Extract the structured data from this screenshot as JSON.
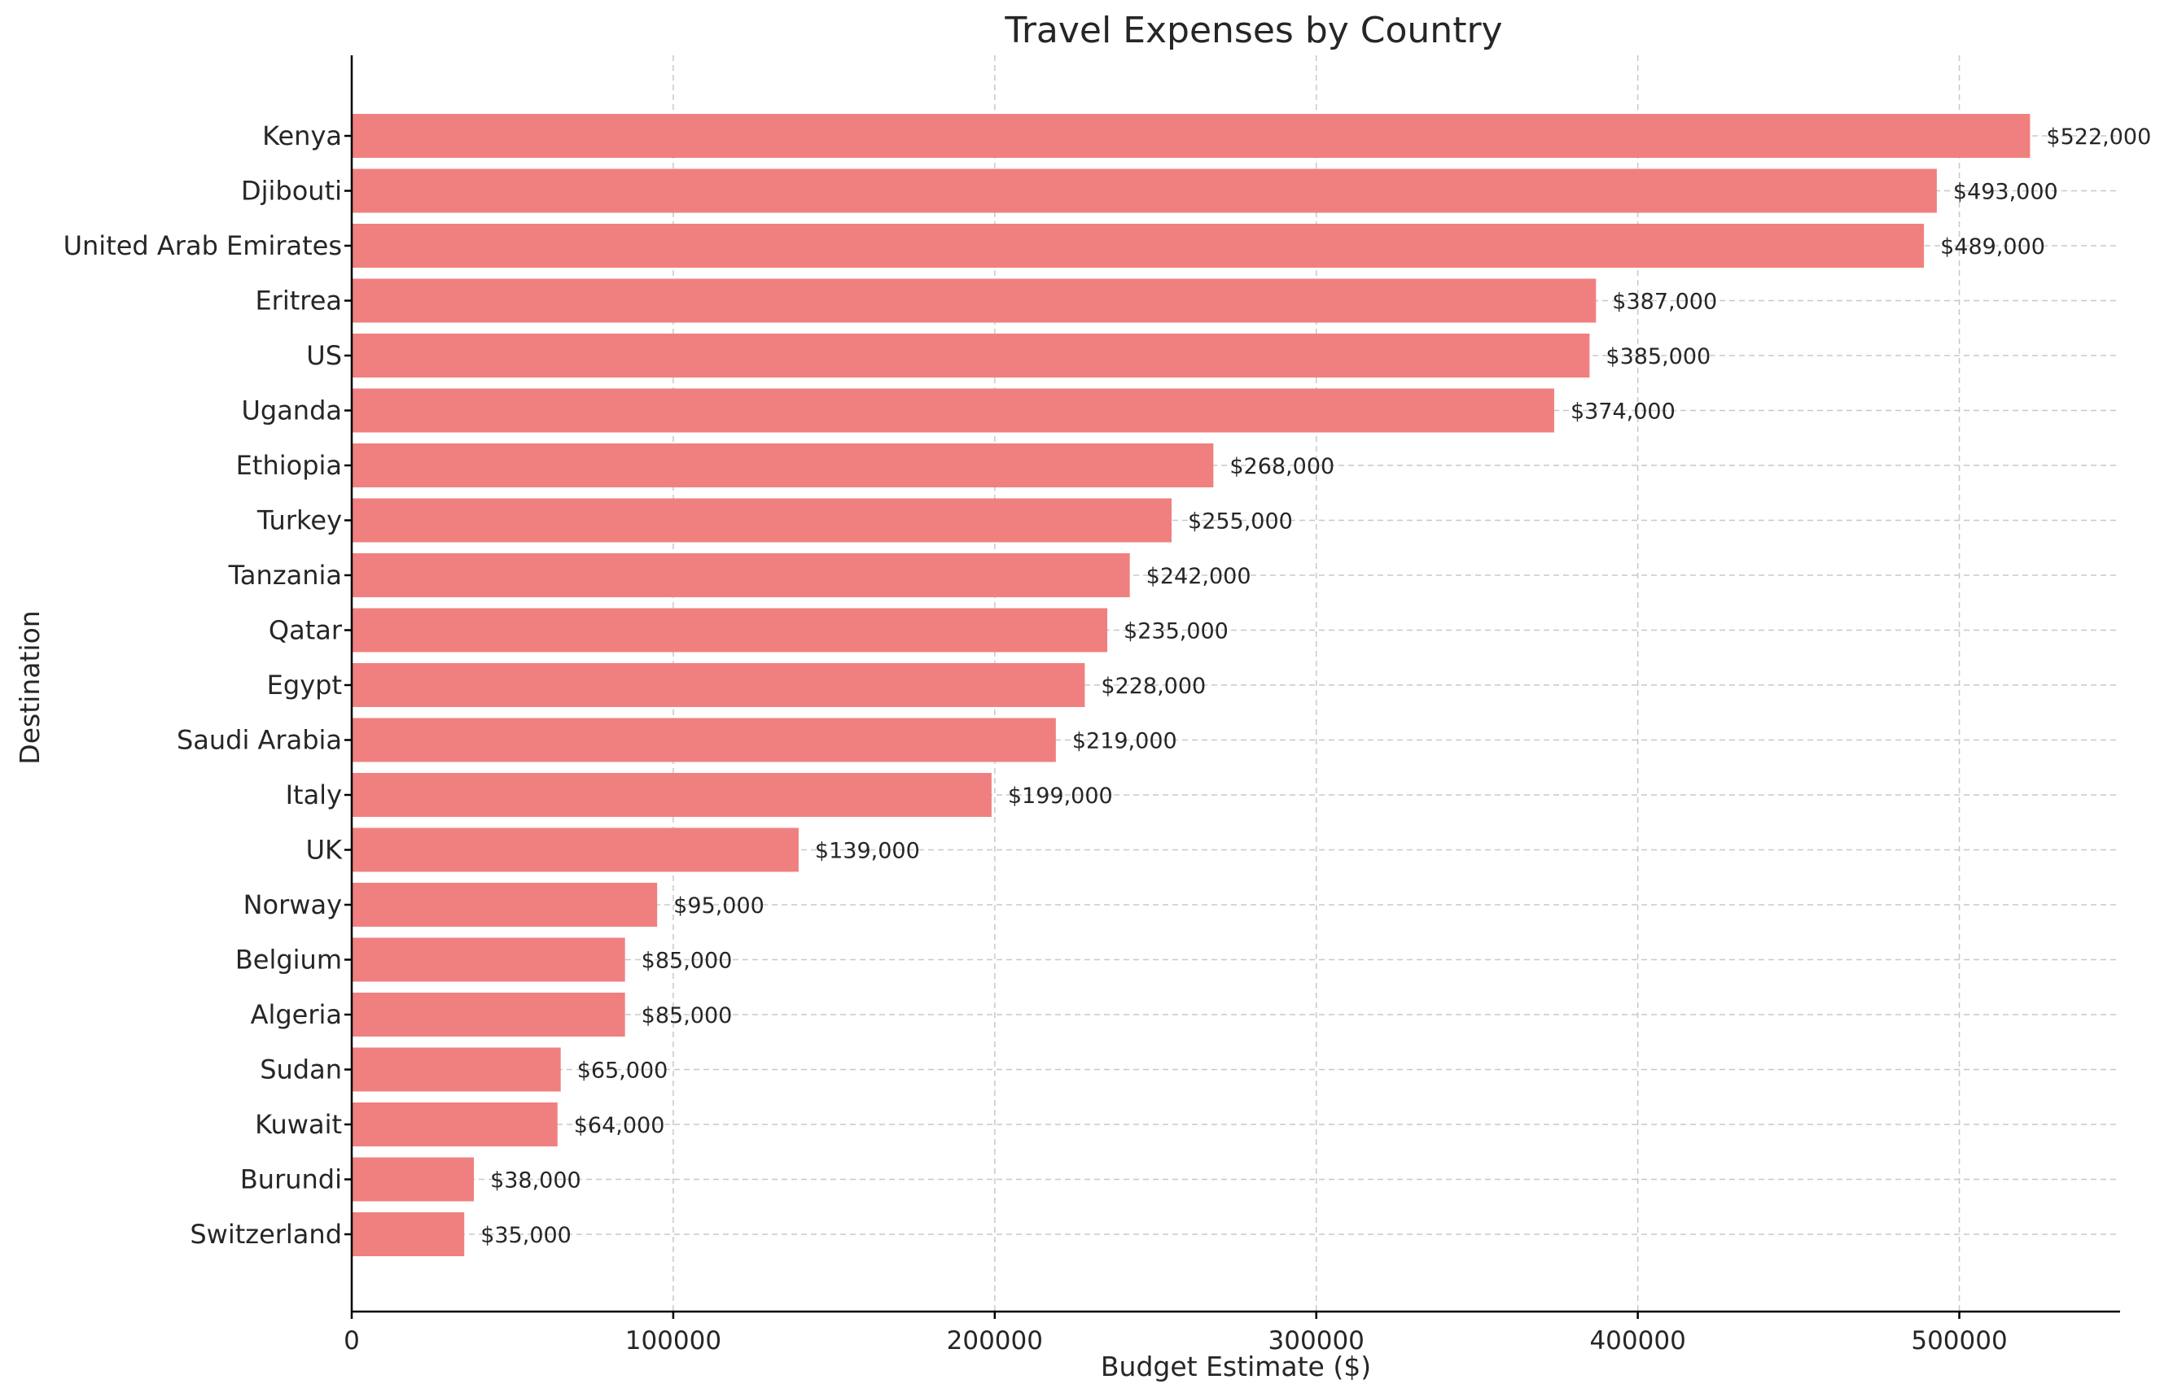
{
  "chart_data": {
    "type": "bar",
    "orientation": "horizontal",
    "title": "Travel Expenses by Country",
    "xlabel": "Budget Estimate ($)",
    "ylabel": "Destination",
    "xlim": [
      0,
      550000
    ],
    "xticks": [
      0,
      100000,
      200000,
      300000,
      400000,
      500000
    ],
    "xtick_labels": [
      "0",
      "100000",
      "200000",
      "300000",
      "400000",
      "500000"
    ],
    "grid": true,
    "bar_color": "#f08080",
    "categories": [
      "Kenya",
      "Djibouti",
      "United Arab Emirates",
      "Eritrea",
      "US",
      "Uganda",
      "Ethiopia",
      "Turkey",
      "Tanzania",
      "Qatar",
      "Egypt",
      "Saudi Arabia",
      "Italy",
      "UK",
      "Norway",
      "Belgium",
      "Algeria",
      "Sudan",
      "Kuwait",
      "Burundi",
      "Switzerland"
    ],
    "values": [
      522000,
      493000,
      489000,
      387000,
      385000,
      374000,
      268000,
      255000,
      242000,
      235000,
      228000,
      219000,
      199000,
      139000,
      95000,
      85000,
      85000,
      65000,
      64000,
      38000,
      35000
    ],
    "value_labels": [
      "$522,000",
      "$493,000",
      "$489,000",
      "$387,000",
      "$385,000",
      "$374,000",
      "$268,000",
      "$255,000",
      "$242,000",
      "$235,000",
      "$228,000",
      "$219,000",
      "$199,000",
      "$139,000",
      "$95,000",
      "$85,000",
      "$85,000",
      "$65,000",
      "$64,000",
      "$38,000",
      "$35,000"
    ]
  }
}
